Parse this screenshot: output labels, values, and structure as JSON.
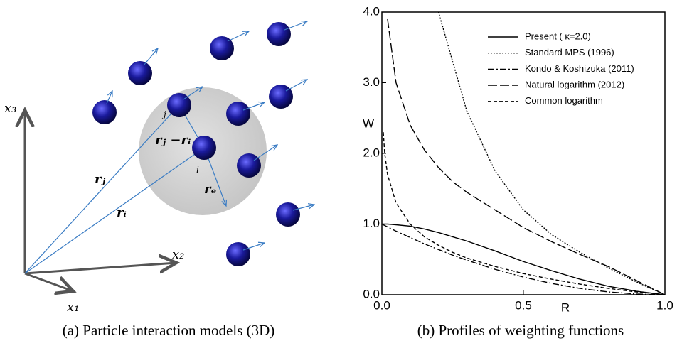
{
  "diagram": {
    "labels": {
      "x3": "x₃",
      "x2": "x₂",
      "x1": "x₁",
      "rj": "rⱼ",
      "ri": "rᵢ",
      "rjri": "rⱼ −rᵢ",
      "re": "rₑ",
      "j": "j",
      "i": "i"
    },
    "caption": "(a) Particle interaction models (3D)"
  },
  "chart_data": {
    "type": "line",
    "caption": "(b) Profiles of weighting functions",
    "xlabel": "R",
    "ylabel": "W",
    "x": [
      0,
      0.005,
      0.01,
      0.02,
      0.05,
      0.1,
      0.15,
      0.2,
      0.25,
      0.3,
      0.4,
      0.5,
      0.6,
      0.7,
      0.8,
      0.9,
      1.0
    ],
    "series": [
      {
        "name": "Present ( κ=2.0)",
        "color": "#000000",
        "dash": "solid",
        "values": [
          1.0,
          1.0,
          1.0,
          1.0,
          0.99,
          0.97,
          0.93,
          0.88,
          0.82,
          0.76,
          0.62,
          0.47,
          0.34,
          0.22,
          0.12,
          0.05,
          0.0
        ]
      },
      {
        "name": "Standard MPS (1996)",
        "color": "#000000",
        "dash": "dotted",
        "values": [
          null,
          null,
          null,
          null,
          null,
          null,
          null,
          4.0,
          3.3,
          2.6,
          1.75,
          1.2,
          0.85,
          0.6,
          0.38,
          0.18,
          0.0
        ]
      },
      {
        "name": "Kondo & Koshizuka (2011)",
        "color": "#000000",
        "dash": "dashdot",
        "values": [
          1.0,
          0.99,
          0.98,
          0.96,
          0.9,
          0.81,
          0.72,
          0.64,
          0.56,
          0.49,
          0.36,
          0.25,
          0.16,
          0.09,
          0.04,
          0.01,
          0.0
        ]
      },
      {
        "name": "Natural logarithm (2012)",
        "color": "#000000",
        "dash": "longdash",
        "values": [
          null,
          null,
          null,
          3.9,
          3.0,
          2.4,
          2.05,
          1.8,
          1.6,
          1.45,
          1.2,
          0.95,
          0.75,
          0.57,
          0.4,
          0.2,
          0.0
        ]
      },
      {
        "name": "Common logarithm",
        "color": "#000000",
        "dash": "dash",
        "values": [
          null,
          2.3,
          2.0,
          1.7,
          1.3,
          1.0,
          0.82,
          0.7,
          0.6,
          0.52,
          0.4,
          0.3,
          0.22,
          0.15,
          0.09,
          0.04,
          0.0
        ]
      }
    ],
    "xlim": [
      0,
      1
    ],
    "xticks": [
      {
        "value": 0,
        "label": "0.0"
      },
      0.5,
      {
        "value": 1,
        "label": "1.0"
      }
    ],
    "ylim": [
      0,
      4
    ],
    "yticks": [
      {
        "value": 0,
        "label": "0.0"
      },
      {
        "value": 1,
        "label": "1.0"
      },
      {
        "value": 2,
        "label": "2.0"
      },
      {
        "value": 3,
        "label": "3.0"
      },
      {
        "value": 4,
        "label": "4.0"
      }
    ],
    "grid": false,
    "legend": "top-right"
  }
}
